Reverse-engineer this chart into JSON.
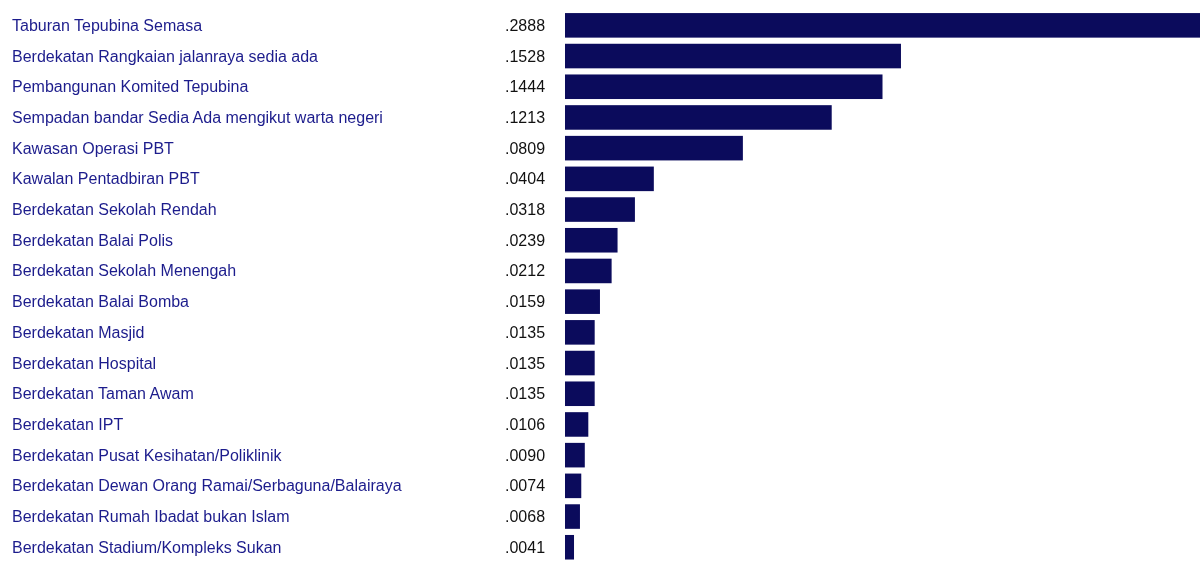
{
  "chart_data": {
    "type": "bar",
    "orientation": "horizontal",
    "color": "#0b0b5c",
    "categories": [
      "Taburan Tepubina Semasa",
      "Berdekatan Rangkaian jalanraya sedia ada",
      "Pembangunan Komited Tepubina",
      "Sempadan bandar Sedia Ada mengikut warta negeri",
      "Kawasan Operasi PBT",
      "Kawalan Pentadbiran PBT",
      "Berdekatan Sekolah Rendah",
      "Berdekatan Balai Polis",
      "Berdekatan Sekolah Menengah",
      "Berdekatan Balai Bomba",
      "Berdekatan Masjid",
      "Berdekatan Hospital",
      "Berdekatan Taman Awam",
      "Berdekatan IPT",
      "Berdekatan Pusat Kesihatan/Poliklinik",
      "Berdekatan Dewan Orang Ramai/Serbaguna/Balairaya",
      "Berdekatan Rumah Ibadat bukan Islam",
      "Berdekatan Stadium/Kompleks Sukan"
    ],
    "values": [
      0.2888,
      0.1528,
      0.1444,
      0.1213,
      0.0809,
      0.0404,
      0.0318,
      0.0239,
      0.0212,
      0.0159,
      0.0135,
      0.0135,
      0.0135,
      0.0106,
      0.009,
      0.0074,
      0.0068,
      0.0041
    ],
    "value_labels": [
      ".2888",
      ".1528",
      ".1444",
      ".1213",
      ".0809",
      ".0404",
      ".0318",
      ".0239",
      ".0212",
      ".0159",
      ".0135",
      ".0135",
      ".0135",
      ".0106",
      ".0090",
      ".0074",
      ".0068",
      ".0041"
    ]
  }
}
